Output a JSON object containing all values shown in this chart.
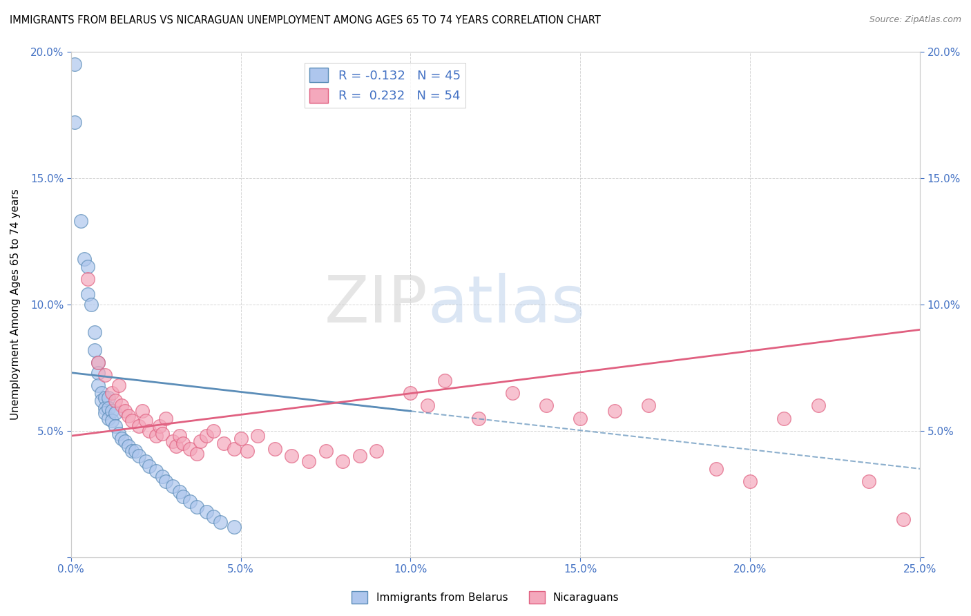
{
  "title": "IMMIGRANTS FROM BELARUS VS NICARAGUAN UNEMPLOYMENT AMONG AGES 65 TO 74 YEARS CORRELATION CHART",
  "source": "Source: ZipAtlas.com",
  "ylabel": "Unemployment Among Ages 65 to 74 years",
  "xlim": [
    0.0,
    0.25
  ],
  "ylim": [
    0.0,
    0.2
  ],
  "xticks": [
    0.0,
    0.05,
    0.1,
    0.15,
    0.2,
    0.25
  ],
  "yticks": [
    0.0,
    0.05,
    0.1,
    0.15,
    0.2
  ],
  "legend_1_label": "R = -0.132   N = 45",
  "legend_2_label": "R =  0.232   N = 54",
  "footer_label_1": "Immigrants from Belarus",
  "footer_label_2": "Nicaraguans",
  "blue_color": "#5B8DB8",
  "blue_fill": "#AEC6ED",
  "pink_color": "#E06080",
  "pink_fill": "#F4A8BC",
  "blue_scatter_x": [
    0.001,
    0.001,
    0.003,
    0.004,
    0.005,
    0.005,
    0.006,
    0.007,
    0.007,
    0.008,
    0.008,
    0.008,
    0.009,
    0.009,
    0.01,
    0.01,
    0.01,
    0.011,
    0.011,
    0.011,
    0.012,
    0.012,
    0.013,
    0.013,
    0.014,
    0.015,
    0.016,
    0.017,
    0.018,
    0.019,
    0.02,
    0.022,
    0.023,
    0.025,
    0.027,
    0.028,
    0.03,
    0.032,
    0.033,
    0.035,
    0.037,
    0.04,
    0.042,
    0.044,
    0.048
  ],
  "blue_scatter_y": [
    0.195,
    0.172,
    0.133,
    0.118,
    0.115,
    0.104,
    0.1,
    0.089,
    0.082,
    0.077,
    0.073,
    0.068,
    0.065,
    0.062,
    0.063,
    0.059,
    0.057,
    0.063,
    0.059,
    0.055,
    0.058,
    0.054,
    0.057,
    0.052,
    0.049,
    0.047,
    0.046,
    0.044,
    0.042,
    0.042,
    0.04,
    0.038,
    0.036,
    0.034,
    0.032,
    0.03,
    0.028,
    0.026,
    0.024,
    0.022,
    0.02,
    0.018,
    0.016,
    0.014,
    0.012
  ],
  "pink_scatter_x": [
    0.005,
    0.008,
    0.01,
    0.012,
    0.013,
    0.014,
    0.015,
    0.016,
    0.017,
    0.018,
    0.02,
    0.021,
    0.022,
    0.023,
    0.025,
    0.026,
    0.027,
    0.028,
    0.03,
    0.031,
    0.032,
    0.033,
    0.035,
    0.037,
    0.038,
    0.04,
    0.042,
    0.045,
    0.048,
    0.05,
    0.052,
    0.055,
    0.06,
    0.065,
    0.07,
    0.075,
    0.08,
    0.085,
    0.09,
    0.1,
    0.105,
    0.11,
    0.12,
    0.13,
    0.14,
    0.15,
    0.16,
    0.17,
    0.19,
    0.2,
    0.21,
    0.22,
    0.235,
    0.245
  ],
  "pink_scatter_y": [
    0.11,
    0.077,
    0.072,
    0.065,
    0.062,
    0.068,
    0.06,
    0.058,
    0.056,
    0.054,
    0.052,
    0.058,
    0.054,
    0.05,
    0.048,
    0.052,
    0.049,
    0.055,
    0.046,
    0.044,
    0.048,
    0.045,
    0.043,
    0.041,
    0.046,
    0.048,
    0.05,
    0.045,
    0.043,
    0.047,
    0.042,
    0.048,
    0.043,
    0.04,
    0.038,
    0.042,
    0.038,
    0.04,
    0.042,
    0.065,
    0.06,
    0.07,
    0.055,
    0.065,
    0.06,
    0.055,
    0.058,
    0.06,
    0.035,
    0.03,
    0.055,
    0.06,
    0.03,
    0.015
  ],
  "blue_trend_x": [
    0.0,
    0.25
  ],
  "blue_trend_y": [
    0.073,
    0.035
  ],
  "pink_trend_x": [
    0.0,
    0.25
  ],
  "pink_trend_y": [
    0.048,
    0.09
  ]
}
